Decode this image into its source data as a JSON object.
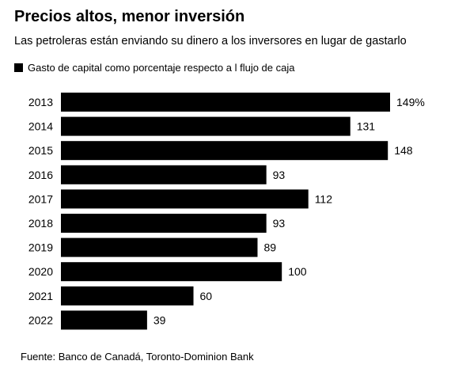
{
  "chart_data": {
    "type": "bar",
    "orientation": "horizontal",
    "title": "Precios altos, menor inversión",
    "subtitle": "Las petroleras están enviando su dinero a los inversores en lugar de gastarlo",
    "legend": "Gasto de capital como porcentaje respecto a l flujo de caja",
    "categories": [
      "2013",
      "2014",
      "2015",
      "2016",
      "2017",
      "2018",
      "2019",
      "2020",
      "2021",
      "2022"
    ],
    "values": [
      149,
      131,
      148,
      93,
      112,
      93,
      89,
      100,
      60,
      39
    ],
    "value_labels": [
      "149%",
      "131",
      "148",
      "93",
      "112",
      "93",
      "89",
      "100",
      "60",
      "39"
    ],
    "bar_color": "#000000",
    "source": "Fuente: Banco de Canadá, Toronto-Dominion Bank"
  }
}
